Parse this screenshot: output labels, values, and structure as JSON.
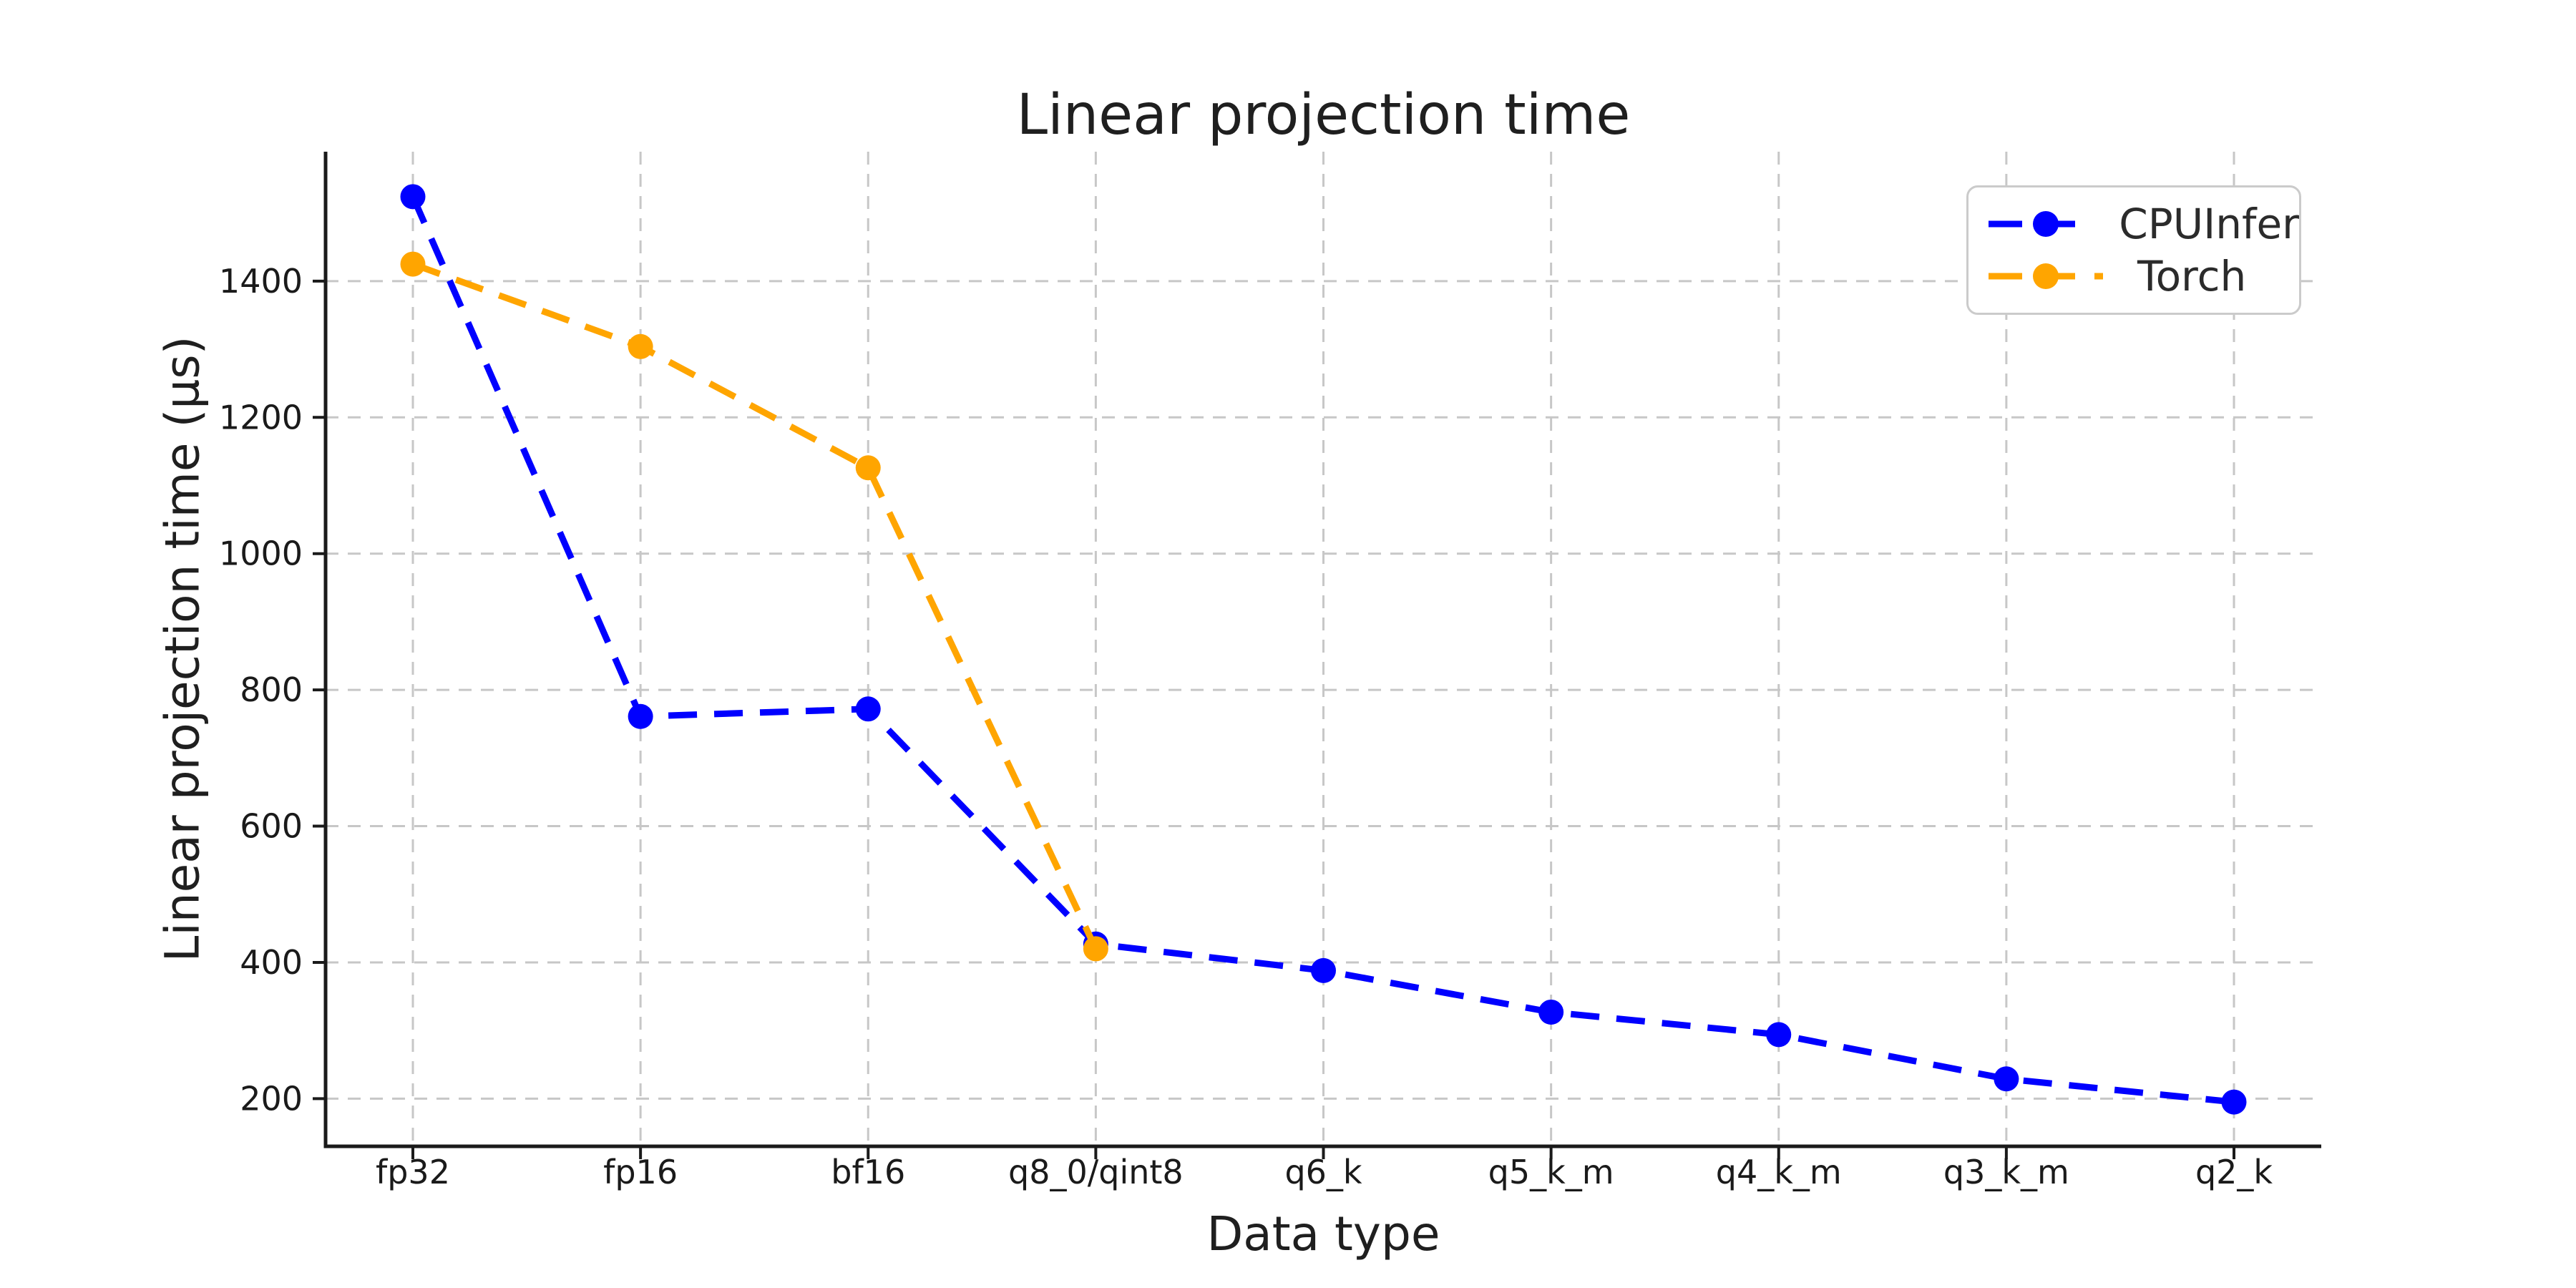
{
  "chart_data": {
    "type": "line",
    "title": "Linear projection time",
    "xlabel": "Data type",
    "ylabel": "Linear projection time (µs)",
    "categories": [
      "fp32",
      "fp16",
      "bf16",
      "q8_0/qint8",
      "q6_k",
      "q5_k_m",
      "q4_k_m",
      "q3_k_m",
      "q2_k"
    ],
    "series": [
      {
        "name": "CPUInfer",
        "color": "#0000ff",
        "values": [
          1524,
          761,
          772,
          427,
          388,
          327,
          294,
          229,
          195
        ]
      },
      {
        "name": "Torch",
        "color": "#ffa500",
        "values": [
          1425,
          1304,
          1126,
          420,
          null,
          null,
          null,
          null,
          null
        ]
      }
    ],
    "yticks": [
      200,
      400,
      600,
      800,
      1000,
      1200,
      1400
    ],
    "ylim": [
      130,
      1590
    ],
    "grid": true,
    "grid_style": "dashed",
    "line_style": "dashed",
    "marker": "o",
    "legend_position": "upper right"
  }
}
